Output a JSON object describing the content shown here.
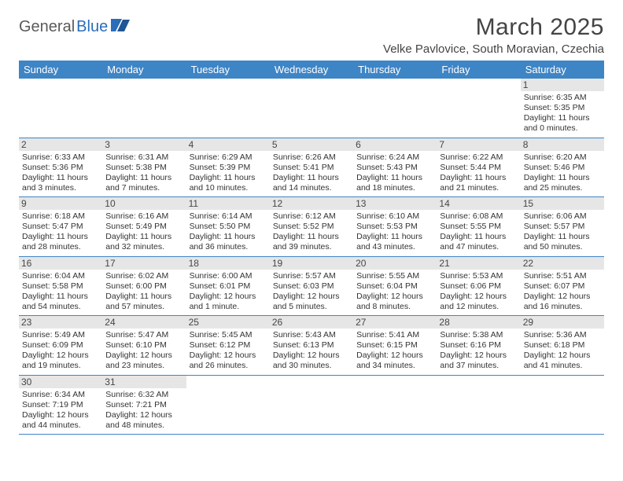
{
  "logo": {
    "part1": "General",
    "part2": "Blue"
  },
  "title": "March 2025",
  "location": "Velke Pavlovice, South Moravian, Czechia",
  "colors": {
    "header_bg": "#3e85c6",
    "header_fg": "#ffffff",
    "border": "#3e85c6",
    "daynum_bg": "#e6e6e6",
    "logo_gray": "#5a5a5a",
    "logo_blue": "#2a6db8"
  },
  "weekdays": [
    "Sunday",
    "Monday",
    "Tuesday",
    "Wednesday",
    "Thursday",
    "Friday",
    "Saturday"
  ],
  "weeks": [
    [
      null,
      null,
      null,
      null,
      null,
      null,
      {
        "n": "1",
        "sr": "6:35 AM",
        "ss": "5:35 PM",
        "dl": "11 hours and 0 minutes."
      }
    ],
    [
      {
        "n": "2",
        "sr": "6:33 AM",
        "ss": "5:36 PM",
        "dl": "11 hours and 3 minutes."
      },
      {
        "n": "3",
        "sr": "6:31 AM",
        "ss": "5:38 PM",
        "dl": "11 hours and 7 minutes."
      },
      {
        "n": "4",
        "sr": "6:29 AM",
        "ss": "5:39 PM",
        "dl": "11 hours and 10 minutes."
      },
      {
        "n": "5",
        "sr": "6:26 AM",
        "ss": "5:41 PM",
        "dl": "11 hours and 14 minutes."
      },
      {
        "n": "6",
        "sr": "6:24 AM",
        "ss": "5:43 PM",
        "dl": "11 hours and 18 minutes."
      },
      {
        "n": "7",
        "sr": "6:22 AM",
        "ss": "5:44 PM",
        "dl": "11 hours and 21 minutes."
      },
      {
        "n": "8",
        "sr": "6:20 AM",
        "ss": "5:46 PM",
        "dl": "11 hours and 25 minutes."
      }
    ],
    [
      {
        "n": "9",
        "sr": "6:18 AM",
        "ss": "5:47 PM",
        "dl": "11 hours and 28 minutes."
      },
      {
        "n": "10",
        "sr": "6:16 AM",
        "ss": "5:49 PM",
        "dl": "11 hours and 32 minutes."
      },
      {
        "n": "11",
        "sr": "6:14 AM",
        "ss": "5:50 PM",
        "dl": "11 hours and 36 minutes."
      },
      {
        "n": "12",
        "sr": "6:12 AM",
        "ss": "5:52 PM",
        "dl": "11 hours and 39 minutes."
      },
      {
        "n": "13",
        "sr": "6:10 AM",
        "ss": "5:53 PM",
        "dl": "11 hours and 43 minutes."
      },
      {
        "n": "14",
        "sr": "6:08 AM",
        "ss": "5:55 PM",
        "dl": "11 hours and 47 minutes."
      },
      {
        "n": "15",
        "sr": "6:06 AM",
        "ss": "5:57 PM",
        "dl": "11 hours and 50 minutes."
      }
    ],
    [
      {
        "n": "16",
        "sr": "6:04 AM",
        "ss": "5:58 PM",
        "dl": "11 hours and 54 minutes."
      },
      {
        "n": "17",
        "sr": "6:02 AM",
        "ss": "6:00 PM",
        "dl": "11 hours and 57 minutes."
      },
      {
        "n": "18",
        "sr": "6:00 AM",
        "ss": "6:01 PM",
        "dl": "12 hours and 1 minute."
      },
      {
        "n": "19",
        "sr": "5:57 AM",
        "ss": "6:03 PM",
        "dl": "12 hours and 5 minutes."
      },
      {
        "n": "20",
        "sr": "5:55 AM",
        "ss": "6:04 PM",
        "dl": "12 hours and 8 minutes."
      },
      {
        "n": "21",
        "sr": "5:53 AM",
        "ss": "6:06 PM",
        "dl": "12 hours and 12 minutes."
      },
      {
        "n": "22",
        "sr": "5:51 AM",
        "ss": "6:07 PM",
        "dl": "12 hours and 16 minutes."
      }
    ],
    [
      {
        "n": "23",
        "sr": "5:49 AM",
        "ss": "6:09 PM",
        "dl": "12 hours and 19 minutes."
      },
      {
        "n": "24",
        "sr": "5:47 AM",
        "ss": "6:10 PM",
        "dl": "12 hours and 23 minutes."
      },
      {
        "n": "25",
        "sr": "5:45 AM",
        "ss": "6:12 PM",
        "dl": "12 hours and 26 minutes."
      },
      {
        "n": "26",
        "sr": "5:43 AM",
        "ss": "6:13 PM",
        "dl": "12 hours and 30 minutes."
      },
      {
        "n": "27",
        "sr": "5:41 AM",
        "ss": "6:15 PM",
        "dl": "12 hours and 34 minutes."
      },
      {
        "n": "28",
        "sr": "5:38 AM",
        "ss": "6:16 PM",
        "dl": "12 hours and 37 minutes."
      },
      {
        "n": "29",
        "sr": "5:36 AM",
        "ss": "6:18 PM",
        "dl": "12 hours and 41 minutes."
      }
    ],
    [
      {
        "n": "30",
        "sr": "6:34 AM",
        "ss": "7:19 PM",
        "dl": "12 hours and 44 minutes."
      },
      {
        "n": "31",
        "sr": "6:32 AM",
        "ss": "7:21 PM",
        "dl": "12 hours and 48 minutes."
      },
      null,
      null,
      null,
      null,
      null
    ]
  ],
  "labels": {
    "sunrise": "Sunrise: ",
    "sunset": "Sunset: ",
    "daylight": "Daylight: "
  }
}
